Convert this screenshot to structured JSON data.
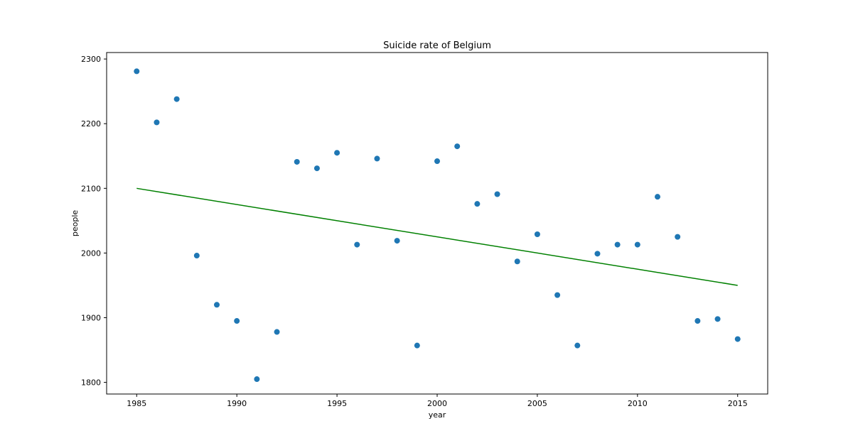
{
  "chart_data": {
    "type": "scatter",
    "title": "Suicide rate of Belgium",
    "xlabel": "year",
    "ylabel": "people",
    "xlim": [
      1983.5,
      2016.5
    ],
    "ylim": [
      1782,
      2310
    ],
    "xticks": [
      1985,
      1990,
      1995,
      2000,
      2005,
      2010,
      2015
    ],
    "yticks": [
      1800,
      1900,
      2000,
      2100,
      2200,
      2300
    ],
    "grid": false,
    "colors": {
      "points": "#1f77b4",
      "trend_line": "#008000"
    },
    "series": [
      {
        "type": "scatter",
        "points": [
          [
            1985,
            2281
          ],
          [
            1986,
            2202
          ],
          [
            1987,
            2238
          ],
          [
            1988,
            1996
          ],
          [
            1989,
            1920
          ],
          [
            1990,
            1895
          ],
          [
            1991,
            1805
          ],
          [
            1992,
            1878
          ],
          [
            1993,
            2141
          ],
          [
            1994,
            2131
          ],
          [
            1995,
            2155
          ],
          [
            1996,
            2013
          ],
          [
            1997,
            2146
          ],
          [
            1998,
            2019
          ],
          [
            1999,
            1857
          ],
          [
            2000,
            2142
          ],
          [
            2001,
            2165
          ],
          [
            2002,
            2076
          ],
          [
            2003,
            2091
          ],
          [
            2004,
            1987
          ],
          [
            2005,
            2029
          ],
          [
            2006,
            1935
          ],
          [
            2007,
            1857
          ],
          [
            2008,
            1999
          ],
          [
            2009,
            2013
          ],
          [
            2010,
            2013
          ],
          [
            2011,
            2087
          ],
          [
            2012,
            2025
          ],
          [
            2013,
            1895
          ],
          [
            2014,
            1898
          ],
          [
            2015,
            1867
          ]
        ]
      },
      {
        "type": "line",
        "points": [
          [
            1985,
            2100
          ],
          [
            2015,
            1950
          ]
        ]
      }
    ]
  }
}
